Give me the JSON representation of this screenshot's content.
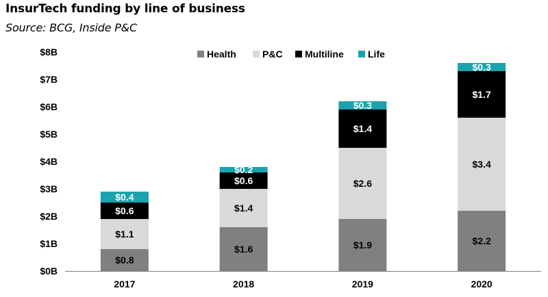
{
  "chart_data": {
    "type": "bar",
    "stacked": true,
    "title": "InsurTech funding by line of business",
    "subtitle": "Source: BCG, Inside P&C",
    "categories": [
      "2017",
      "2018",
      "2019",
      "2020"
    ],
    "series": [
      {
        "name": "Health",
        "color": "#808080",
        "label_color": "#000000",
        "values": [
          0.8,
          1.6,
          1.9,
          2.2
        ],
        "labels": [
          "$0.8",
          "$1.6",
          "$1.9",
          "$2.2"
        ]
      },
      {
        "name": "P&C",
        "color": "#d9d9d9",
        "label_color": "#000000",
        "values": [
          1.1,
          1.4,
          2.6,
          3.4
        ],
        "labels": [
          "$1.1",
          "$1.4",
          "$2.6",
          "$3.4"
        ]
      },
      {
        "name": "Multiline",
        "color": "#000000",
        "label_color": "#ffffff",
        "values": [
          0.6,
          0.6,
          1.4,
          1.7
        ],
        "labels": [
          "$0.6",
          "$0.6",
          "$1.4",
          "$1.7"
        ]
      },
      {
        "name": "Life",
        "color": "#1aa3ad",
        "label_color": "#ffffff",
        "values": [
          0.4,
          0.2,
          0.3,
          0.3
        ],
        "labels": [
          "$0.4",
          "$0.2",
          "$0.3",
          "$0.3"
        ]
      }
    ],
    "ylim": [
      0,
      8
    ],
    "yticks": [
      0,
      1,
      2,
      3,
      4,
      5,
      6,
      7,
      8
    ],
    "ytick_labels": [
      "$0B",
      "$1B",
      "$2B",
      "$3B",
      "$4B",
      "$5B",
      "$6B",
      "$7B",
      "$8B"
    ],
    "xlabel": "",
    "ylabel": "",
    "grid": false,
    "legend_position": "top-center"
  }
}
